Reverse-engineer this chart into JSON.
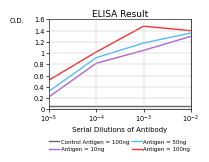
{
  "title": "ELISA Result",
  "ylabel": "O.D.",
  "xlabel": "Serial Dilutions of Antibody",
  "x_values": [
    0.01,
    0.001,
    0.0001,
    1e-05
  ],
  "ylim": [
    0,
    1.6
  ],
  "yticks": [
    0,
    0.2,
    0.4,
    0.6,
    0.8,
    1.0,
    1.2,
    1.4,
    1.6
  ],
  "ytick_labels": [
    "0",
    "0.2",
    "0.4",
    "0.6",
    "0.8",
    "1",
    "1.2",
    "1.4",
    "1.6"
  ],
  "series": [
    {
      "label": "Control Antigen = 100ng",
      "color": "#666666",
      "y": [
        0.07,
        0.07,
        0.07,
        0.07
      ],
      "lw": 1.0
    },
    {
      "label": "Antigen = 10ng",
      "color": "#aa66cc",
      "y": [
        1.3,
        1.05,
        0.82,
        0.22
      ],
      "lw": 1.0
    },
    {
      "label": "Antigen = 50ng",
      "color": "#55bbee",
      "y": [
        1.36,
        1.18,
        0.92,
        0.32
      ],
      "lw": 1.0
    },
    {
      "label": "Antigen = 100ng",
      "color": "#ee3333",
      "y": [
        1.4,
        1.48,
        1.02,
        0.52
      ],
      "lw": 1.0
    }
  ],
  "background_color": "#ffffff",
  "title_fontsize": 6.5,
  "label_fontsize": 5.0,
  "tick_fontsize": 4.8,
  "legend_fontsize": 4.0
}
